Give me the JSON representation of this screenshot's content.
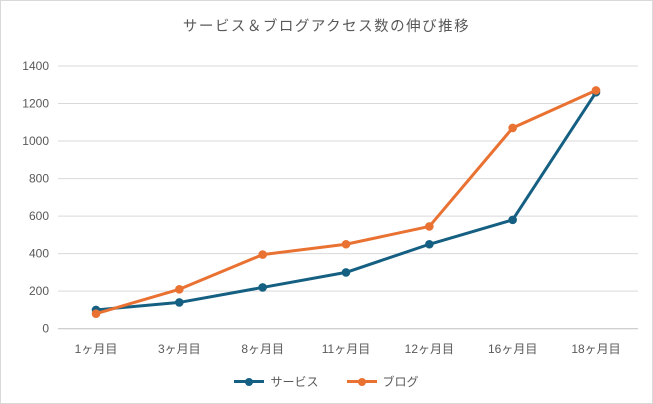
{
  "chart_data": {
    "type": "line",
    "title": "サービス＆ブログアクセス数の伸び推移",
    "categories": [
      "1ヶ月目",
      "3ヶ月目",
      "8ヶ月目",
      "11ヶ月目",
      "12ヶ月目",
      "16ヶ月目",
      "18ヶ月目"
    ],
    "series": [
      {
        "name": "サービス",
        "color": "#156082",
        "values": [
          100,
          140,
          220,
          300,
          450,
          580,
          1260
        ]
      },
      {
        "name": "ブログ",
        "color": "#E97132",
        "values": [
          80,
          210,
          395,
          450,
          545,
          1070,
          1270
        ]
      }
    ],
    "xlabel": "",
    "ylabel": "",
    "ylim": [
      0,
      1400
    ],
    "yticks": [
      0,
      200,
      400,
      600,
      800,
      1000,
      1200,
      1400
    ],
    "grid": true,
    "legend_position": "bottom",
    "marker": "circle",
    "text_color": "#595959",
    "gridline_color": "#D9D9D9",
    "axisline_color": "#BFBFBF"
  }
}
